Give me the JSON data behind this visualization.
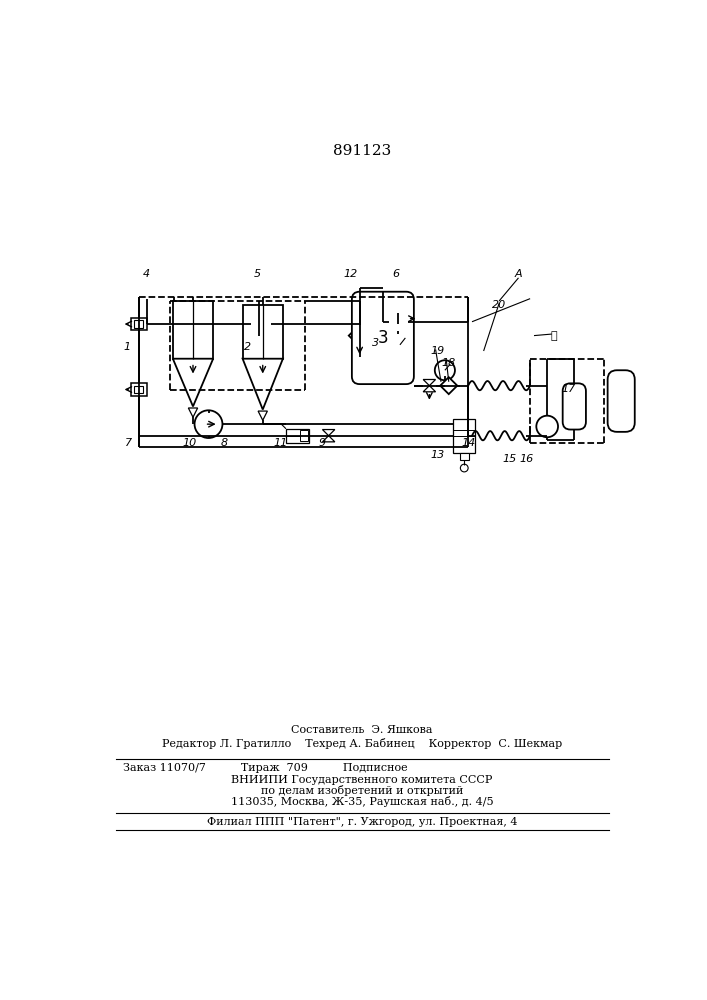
{
  "title": "891123",
  "bg_color": "#ffffff",
  "footer_lines": [
    "Составитель  Э. Яшкова",
    "Редактор Л. Гратилло    Техред А. Бабинец    Корректор  С. Шекмар",
    "Заказ 11070/7          Тираж  709          Подписное",
    "ВНИИПИ Государственного комитета СССР",
    "по делам изобретений и открытий",
    "113035, Москва, Ж-35, Раушская наб., д. 4/5",
    "Филиал ППП \"Патент\", г. Ужгород, ул. Проектная, 4"
  ]
}
